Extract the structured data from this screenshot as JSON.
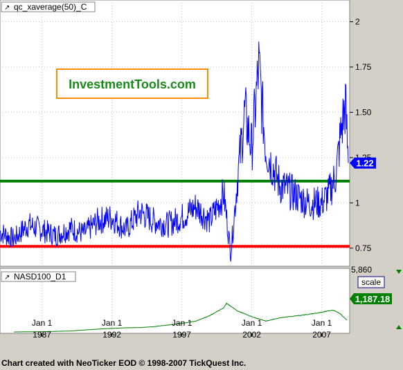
{
  "chart_data": [
    {
      "type": "line",
      "series": [
        {
          "name": "qc_xaverage(50)_C",
          "color": "#0000ff"
        }
      ],
      "ylim": [
        0.65,
        2.12
      ],
      "yticks": [
        0.75,
        1,
        1.25,
        1.5,
        1.75,
        2
      ],
      "ytick_labels": [
        "0.75",
        "1",
        "1.25",
        "1.50",
        "1.75",
        "2"
      ],
      "last_value": 1.22,
      "last_value_label": "1.22",
      "reference_lines": [
        {
          "value": 1.12,
          "color": "#008000"
        },
        {
          "value": 0.76,
          "color": "#ff0000"
        }
      ],
      "x": [
        "1984",
        "1985",
        "1986",
        "1987",
        "1988",
        "1989",
        "1990",
        "1991",
        "1992",
        "1993",
        "1994",
        "1995",
        "1996",
        "1997",
        "1998",
        "1999",
        "2000",
        "2000.5",
        "2001",
        "2001.5",
        "2002",
        "2002.5",
        "2003",
        "2004",
        "2005",
        "2006",
        "2007",
        "2007.5",
        "2008",
        "2008.4",
        "2008.7",
        "2008.9"
      ],
      "values": [
        0.84,
        0.8,
        0.88,
        0.85,
        0.82,
        0.86,
        0.83,
        0.9,
        0.92,
        0.85,
        0.95,
        0.9,
        0.88,
        0.92,
        0.98,
        0.9,
        1.05,
        0.72,
        1.15,
        1.5,
        1.3,
        1.75,
        1.3,
        1.1,
        1.05,
        1.0,
        1.0,
        1.05,
        1.15,
        1.4,
        1.55,
        1.22
      ],
      "x_ticks": [
        "Jan 1",
        "Jan 1",
        "Jan 1",
        "Jan 1",
        "Jan 1"
      ],
      "x_tick_years": [
        "1987",
        "1992",
        "1997",
        "2002",
        "2007"
      ],
      "x_tick_values": [
        "1987",
        "1992",
        "1997",
        "2002",
        "2007"
      ],
      "grid": true
    },
    {
      "type": "line",
      "series": [
        {
          "name": "NASD100_D1",
          "color": "#008000"
        }
      ],
      "ylim": [
        0,
        5860
      ],
      "ytick_labels": [
        "5,860"
      ],
      "last_value": 1187.18,
      "last_value_label": "1,187.18",
      "scale_button": "scale",
      "x": [
        "1985",
        "1986",
        "1987",
        "1988",
        "1989",
        "1990",
        "1991",
        "1992",
        "1993",
        "1994",
        "1995",
        "1996",
        "1997",
        "1998",
        "1999",
        "2000",
        "2000.2",
        "2001",
        "2002",
        "2003",
        "2004",
        "2005",
        "2006",
        "2007",
        "2007.8",
        "2008.3",
        "2008.8"
      ],
      "values": [
        125,
        140,
        150,
        180,
        210,
        300,
        380,
        450,
        500,
        520,
        600,
        750,
        900,
        1100,
        1600,
        2300,
        2700,
        2000,
        1500,
        1100,
        1400,
        1550,
        1700,
        1900,
        2100,
        1800,
        1187.18
      ],
      "grid": true
    }
  ],
  "footer": "Chart created with NeoTicker EOD © 1998-2007 TickQuest Inc.",
  "watermark": "InvestmentTools.com",
  "colors": {
    "background": "#d4d0c8",
    "plot_background": "#ffffff",
    "blue_line": "#0000ff",
    "green_line": "#008000",
    "red_line": "#ff0000",
    "watermark_orange": "#ff8c00",
    "watermark_text": "#1a8a1a",
    "label_box": "#0000ff"
  }
}
